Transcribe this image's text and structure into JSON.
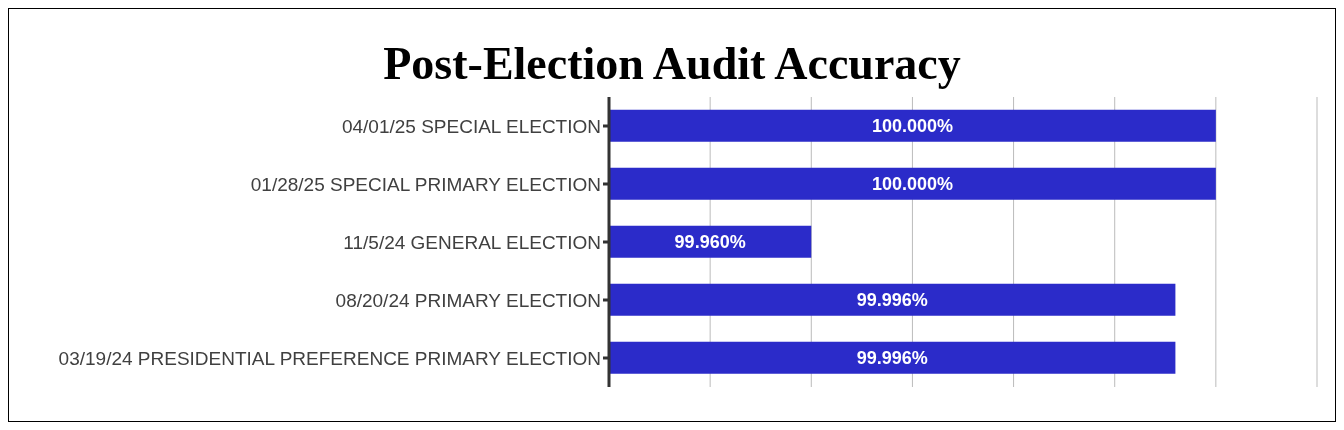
{
  "chart_data": {
    "type": "bar",
    "orientation": "horizontal",
    "title": "Post-Election Audit Accuracy",
    "categories": [
      "04/01/25 SPECIAL ELECTION",
      "01/28/25 SPECIAL PRIMARY ELECTION",
      "11/5/24 GENERAL ELECTION",
      "08/20/24 PRIMARY ELECTION",
      "03/19/24 PRESIDENTIAL PREFERENCE PRIMARY ELECTION"
    ],
    "values": [
      100,
      100,
      99.96,
      99.996,
      99.996
    ],
    "value_labels": [
      "100.000%",
      "100.000%",
      "99.960%",
      "99.996%",
      "99.996%"
    ],
    "color": "#2b2bc9",
    "xlim": [
      99.94,
      100.01
    ],
    "xticks": [
      {
        "value": 99.94,
        "label": null
      },
      {
        "value": 99.95,
        "label": null
      },
      {
        "value": 99.96,
        "label": null
      },
      {
        "value": 99.97,
        "label": null
      },
      {
        "value": 99.98,
        "label": null
      },
      {
        "value": 99.99,
        "label": null
      },
      {
        "value": 100,
        "label": null
      },
      {
        "value": 100.01,
        "label": null
      }
    ],
    "grid": "x",
    "tick_labels": "y",
    "legend": false
  }
}
